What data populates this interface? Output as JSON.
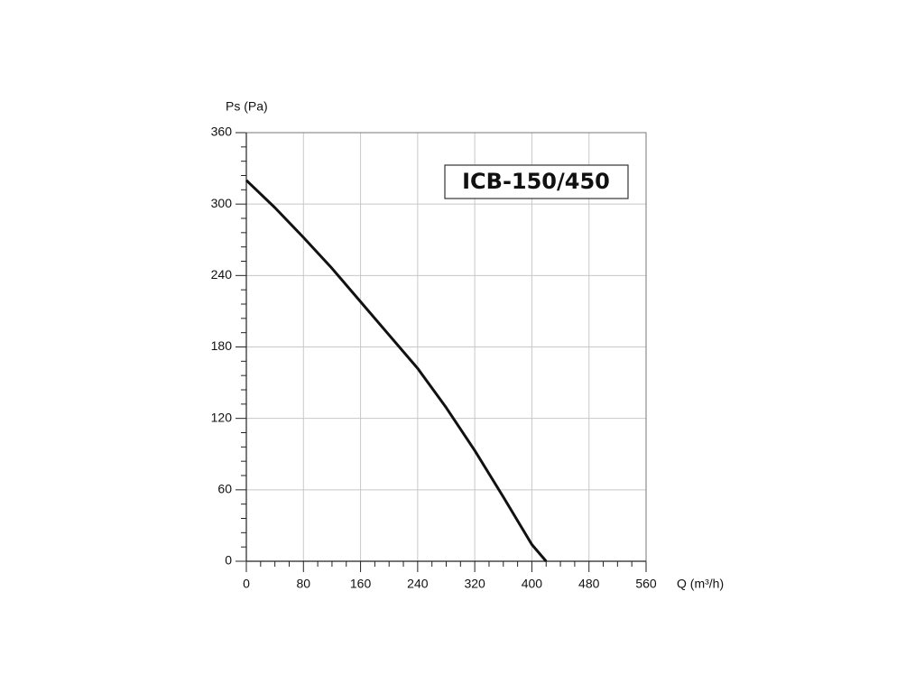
{
  "chart_data": {
    "type": "line",
    "y_axis_label": "Ps (Pa)",
    "x_axis_label": "Q (m³/h)",
    "annotation": "ICB-150/450",
    "x": [
      0,
      40,
      80,
      120,
      160,
      200,
      240,
      280,
      320,
      360,
      400,
      420
    ],
    "series": [
      {
        "name": "ICB-150/450",
        "color": "#111111",
        "values": [
          320,
          297,
          272,
          246,
          218,
          190,
          162,
          129,
          93,
          54,
          14,
          0
        ]
      }
    ],
    "xlim": [
      0,
      560
    ],
    "xticks": [
      0,
      80,
      160,
      240,
      320,
      400,
      480,
      560
    ],
    "ylim": [
      0,
      360
    ],
    "yticks": [
      0,
      60,
      120,
      180,
      240,
      300,
      360
    ],
    "grid": true
  }
}
